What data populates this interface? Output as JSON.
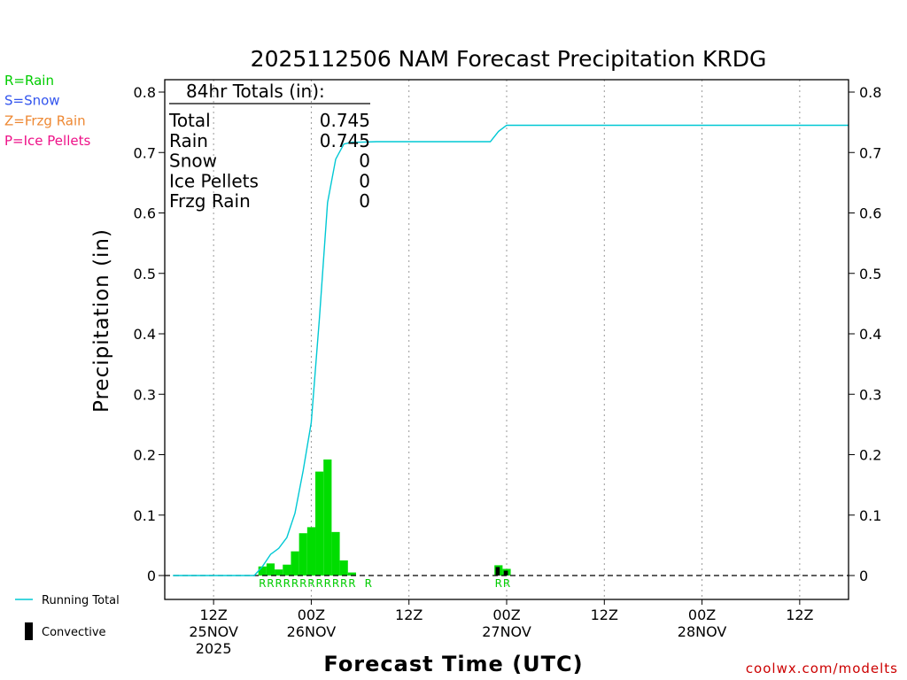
{
  "chart_data": {
    "type": "bar",
    "title": "2025112506 NAM Forecast Precipitation KRDG",
    "ylabel": "Precipitation (in)",
    "xlabel": "Forecast Time (UTC)",
    "ylim": [
      0,
      0.8
    ],
    "yticks": [
      "0",
      "0.1",
      "0.2",
      "0.3",
      "0.4",
      "0.5",
      "0.6",
      "0.7",
      "0.8"
    ],
    "xlim_hours": [
      6,
      90
    ],
    "xticks": [
      {
        "hour": 12,
        "label1": "12Z",
        "label2": "25NOV",
        "label3": "2025"
      },
      {
        "hour": 24,
        "label1": "00Z",
        "label2": "26NOV",
        "label3": ""
      },
      {
        "hour": 36,
        "label1": "12Z",
        "label2": "",
        "label3": ""
      },
      {
        "hour": 48,
        "label1": "00Z",
        "label2": "27NOV",
        "label3": ""
      },
      {
        "hour": 60,
        "label1": "12Z",
        "label2": "",
        "label3": ""
      },
      {
        "hour": 72,
        "label1": "00Z",
        "label2": "28NOV",
        "label3": ""
      },
      {
        "hour": 84,
        "label1": "12Z",
        "label2": "",
        "label3": ""
      }
    ],
    "grid": "dotted-vertical",
    "totals_box": {
      "header": "84hr Totals (in):",
      "rows": [
        {
          "label": "Total",
          "value": "0.745"
        },
        {
          "label": "Rain",
          "value": "0.745"
        },
        {
          "label": "Snow",
          "value": "0"
        },
        {
          "label": "Ice Pellets",
          "value": "0"
        },
        {
          "label": "Frzg Rain",
          "value": "0"
        }
      ]
    },
    "series": [
      {
        "name": "Rain",
        "kind": "bar",
        "color": "#00dd00",
        "hours": [
          18,
          19,
          20,
          21,
          22,
          23,
          24,
          25,
          26,
          27,
          28,
          29,
          47,
          48
        ],
        "values": [
          0.015,
          0.02,
          0.01,
          0.018,
          0.04,
          0.07,
          0.08,
          0.172,
          0.192,
          0.072,
          0.025,
          0.005,
          0.017,
          0.011
        ]
      },
      {
        "name": "Convective",
        "kind": "bar",
        "color": "#000000",
        "hours": [
          47,
          48
        ],
        "values": [
          0.014,
          0.008
        ]
      },
      {
        "name": "Running Total",
        "kind": "line",
        "color": "#00c8d4",
        "hours": [
          7,
          17,
          18,
          19,
          20,
          21,
          22,
          23,
          24,
          25,
          26,
          27,
          28,
          29,
          30,
          32,
          34,
          36,
          38,
          40,
          42,
          44,
          46,
          47,
          48,
          90
        ],
        "values": [
          0,
          0,
          0.015,
          0.035,
          0.045,
          0.063,
          0.103,
          0.173,
          0.253,
          0.425,
          0.617,
          0.689,
          0.714,
          0.717,
          0.717,
          0.718,
          0.718,
          0.718,
          0.718,
          0.718,
          0.718,
          0.718,
          0.718,
          0.735,
          0.745,
          0.745
        ]
      }
    ],
    "precip_type_markers": {
      "color": "#00cc00",
      "hours": [
        18,
        19,
        20,
        21,
        22,
        23,
        24,
        25,
        26,
        27,
        28,
        29,
        31,
        47,
        48
      ],
      "labels": [
        "R",
        "R",
        "R",
        "R",
        "R",
        "R",
        "R",
        "R",
        "R",
        "R",
        "R",
        "R",
        "R",
        "R",
        "R"
      ]
    },
    "ptype_legend": [
      {
        "label": "R=Rain",
        "color": "#00cc00"
      },
      {
        "label": "S=Snow",
        "color": "#3355ee"
      },
      {
        "label": "Z=Frzg Rain",
        "color": "#ee8833"
      },
      {
        "label": "P=Ice Pellets",
        "color": "#ee1188"
      }
    ],
    "series_legend": {
      "running_total": "Running Total",
      "convective": "Convective"
    },
    "source": "coolwx.com/modelts"
  }
}
